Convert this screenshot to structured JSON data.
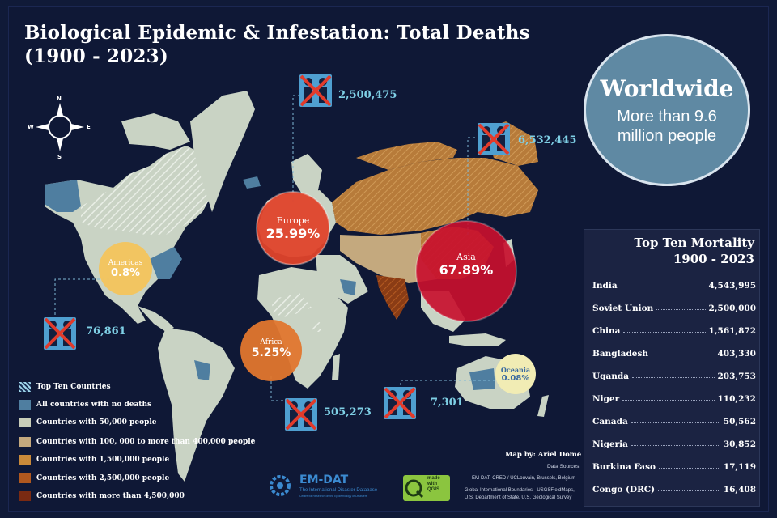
{
  "title_line1": "Biological Epidemic & Infestation: Total Deaths",
  "title_line2": "(1900 - 2023)",
  "compass": {
    "n": "N",
    "s": "S",
    "e": "E",
    "w": "W"
  },
  "worldwide": {
    "title": "Worldwide",
    "subtitle": "More than 9.6 million people"
  },
  "regions": [
    {
      "name": "Europe",
      "pct": "25.99%",
      "deaths": "2,500,475",
      "color": "#e0432b"
    },
    {
      "name": "Asia",
      "pct": "67.89%",
      "deaths": "6,532,445",
      "color": "#c8102e"
    },
    {
      "name": "Americas",
      "pct": "0.8%",
      "deaths": "76,861",
      "color": "#f4c45c"
    },
    {
      "name": "Africa",
      "pct": "5.25%",
      "deaths": "505,273",
      "color": "#e2762e"
    },
    {
      "name": "Oceania",
      "pct": "0.08%",
      "deaths": "7,301",
      "color": "#f1ecb4"
    }
  ],
  "top10": {
    "title_line1": "Top Ten Mortality",
    "title_line2": "1900 - 2023",
    "rows": [
      {
        "country": "India",
        "value": "4,543,995"
      },
      {
        "country": "Soviet Union",
        "value": "2,500,000"
      },
      {
        "country": "China",
        "value": "1,561,872"
      },
      {
        "country": "Bangladesh",
        "value": "403,330"
      },
      {
        "country": "Uganda",
        "value": "203,753"
      },
      {
        "country": "Niger",
        "value": "110,232"
      },
      {
        "country": "Canada",
        "value": "50,562"
      },
      {
        "country": "Nigeria",
        "value": "30,852"
      },
      {
        "country": "Burkina Faso",
        "value": "17,119"
      },
      {
        "country": "Congo (DRC)",
        "value": "16,408"
      }
    ]
  },
  "legend": [
    {
      "label": "Top Ten Countries",
      "color": "#9fd6ea",
      "hatch": true
    },
    {
      "label": "All countries with no deaths",
      "color": "#4f7ea0"
    },
    {
      "label": "Countries with 50,000 people",
      "color": "#c8cdb8"
    },
    {
      "label": "Countries with 100, 000 to more than 400,000 people",
      "color": "#c4a97e"
    },
    {
      "label": "Countries with 1,500,000 people",
      "color": "#c98a3a"
    },
    {
      "label": "Countries with 2,500,000 people",
      "color": "#b0581f"
    },
    {
      "label": "Countries with more than 4,500,000",
      "color": "#7a2a12"
    }
  ],
  "credits": {
    "map_by": "Map by: Ariel Dome",
    "sources_label": "Data Sources:",
    "source1": "EM-DAT, CRED / UCLouvain, Brussels, Belgium",
    "source2": "Global International Boundaries - USGSFieldMaps,",
    "source3": "U.S. Department of State, U.S. Geological Survey",
    "emdat_logo": "EM-DAT",
    "emdat_sub": "The International Disaster Database",
    "emdat_sub2": "Centre for Research on the Epidemiology of Disasters",
    "qgis_line1": "made",
    "qgis_line2": "with",
    "qgis_line3": "QGIS"
  }
}
